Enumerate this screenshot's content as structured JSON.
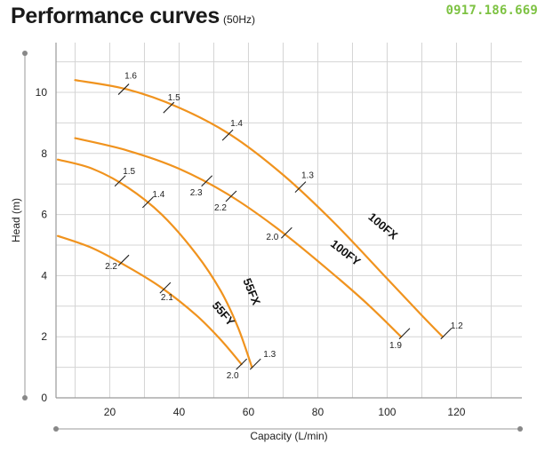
{
  "header": {
    "title": "Performance curves",
    "subtitle": "(50Hz)",
    "phone": "0917.186.669"
  },
  "chart_data": {
    "type": "line",
    "title": "Performance curves",
    "subtitle": "(50Hz)",
    "xlabel": "Capacity (L/min)",
    "ylabel": "Head (m)",
    "xlim": [
      0,
      135
    ],
    "ylim": [
      0,
      11.5
    ],
    "xticks": [
      20,
      40,
      60,
      80,
      100,
      120
    ],
    "yticks": [
      0,
      2,
      4,
      6,
      8,
      10
    ],
    "grid": true,
    "line_color": "#f0931e",
    "series": [
      {
        "name": "100FX",
        "points": [
          [
            10,
            10.4
          ],
          [
            25,
            10.1
          ],
          [
            40,
            9.5
          ],
          [
            55,
            8.6
          ],
          [
            70,
            7.3
          ],
          [
            85,
            5.7
          ],
          [
            100,
            3.9
          ],
          [
            110,
            2.7
          ],
          [
            116,
            2.0
          ]
        ],
        "efficiency_marks": [
          {
            "x": 24,
            "y": 10.1,
            "label": "1.6"
          },
          {
            "x": 37,
            "y": 9.5,
            "label": "1.5"
          },
          {
            "x": 54,
            "y": 8.6,
            "label": "1.4"
          },
          {
            "x": 75,
            "y": 6.9,
            "label": "1.3"
          },
          {
            "x": 117,
            "y": 2.1,
            "label": "1.2"
          }
        ]
      },
      {
        "name": "100FY",
        "points": [
          [
            10,
            8.5
          ],
          [
            25,
            8.1
          ],
          [
            40,
            7.5
          ],
          [
            55,
            6.6
          ],
          [
            70,
            5.4
          ],
          [
            85,
            4.0
          ],
          [
            95,
            3.0
          ],
          [
            104,
            2.0
          ]
        ],
        "efficiency_marks": [
          {
            "x": 48,
            "y": 7.1,
            "label": "2.3"
          },
          {
            "x": 55,
            "y": 6.6,
            "label": "2.2"
          },
          {
            "x": 71,
            "y": 5.4,
            "label": "2.0"
          },
          {
            "x": 105,
            "y": 2.1,
            "label": "1.9"
          }
        ]
      },
      {
        "name": "55FX",
        "points": [
          [
            5,
            7.8
          ],
          [
            15,
            7.5
          ],
          [
            25,
            6.9
          ],
          [
            35,
            6.0
          ],
          [
            45,
            4.7
          ],
          [
            52,
            3.5
          ],
          [
            57,
            2.3
          ],
          [
            61,
            1.0
          ]
        ],
        "efficiency_marks": [
          {
            "x": 23,
            "y": 7.1,
            "label": "1.5"
          },
          {
            "x": 31,
            "y": 6.4,
            "label": "1.4"
          },
          {
            "x": 62,
            "y": 1.1,
            "label": "1.3"
          }
        ]
      },
      {
        "name": "55FY",
        "points": [
          [
            5,
            5.3
          ],
          [
            15,
            4.9
          ],
          [
            25,
            4.3
          ],
          [
            35,
            3.6
          ],
          [
            45,
            2.7
          ],
          [
            52,
            1.9
          ],
          [
            58,
            1.1
          ]
        ],
        "efficiency_marks": [
          {
            "x": 24,
            "y": 4.5,
            "label": "2.2"
          },
          {
            "x": 36,
            "y": 3.6,
            "label": "2.1"
          },
          {
            "x": 58,
            "y": 1.1,
            "label": "2.0"
          }
        ]
      }
    ]
  }
}
